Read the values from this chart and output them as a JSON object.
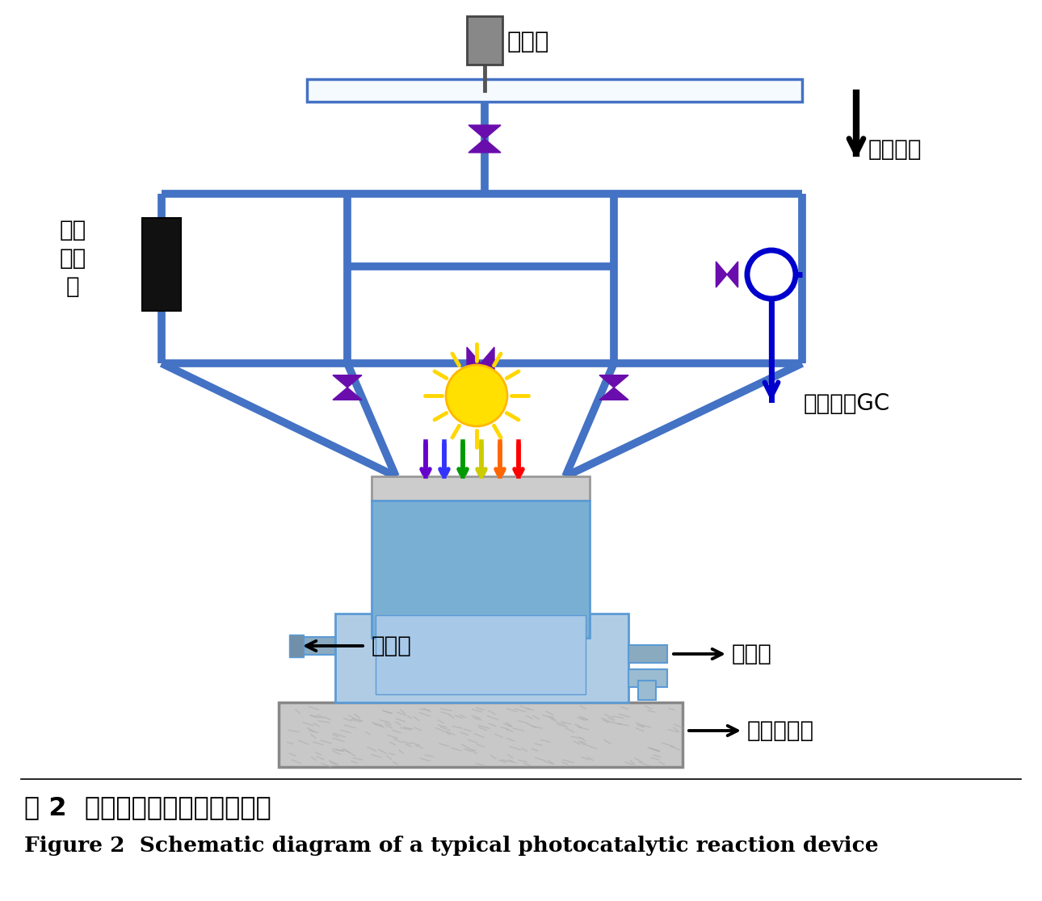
{
  "title_cn": "图 2  典型光催化反应装置示意图",
  "title_en": "Figure 2  Schematic diagram of a typical photocatalytic reaction device",
  "blue": "#4472C4",
  "gc_blue": "#0000CD",
  "purple": "#6A0DAD",
  "black": "#000000",
  "reactor_blue_light": "#A8C8E8",
  "reactor_blue_body": "#7AAFD4",
  "reactor_gray_lid": "#C8C8C8",
  "holder_blue": "#B0CCE4",
  "holder_frame": "#8AAEC8",
  "stirrer_gray": "#C0C0C0",
  "dark_gray": "#666666",
  "bg": "#FFFFFF",
  "lw_pipe": 7,
  "lw_thin": 4,
  "labels": {
    "vacuum_gauge": "真空计",
    "vacuum_pump": "接真空泵",
    "gc": "气相色谱GC",
    "gas_pump_line1": "气体",
    "gas_pump_line2": "循环",
    "gas_pump_line3": "泵",
    "reactor": "反应器",
    "condenser": "冷凝器",
    "stirrer": "磁力搞拌器"
  },
  "rainbow_colors": [
    "#6600CC",
    "#3333FF",
    "#009900",
    "#CCCC00",
    "#FF6600",
    "#FF0000"
  ],
  "sun_color": "#FFE000",
  "sun_ray_color": "#FFD700"
}
